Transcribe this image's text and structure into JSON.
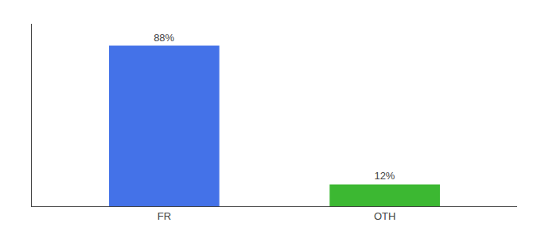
{
  "chart_data": {
    "type": "bar",
    "categories": [
      "FR",
      "OTH"
    ],
    "values": [
      88,
      12
    ],
    "value_labels": [
      "88%",
      "12%"
    ],
    "colors": [
      "#4472e8",
      "#3cb832"
    ],
    "ylim": [
      0,
      100
    ],
    "data_labels": true,
    "tick_labels": "x",
    "grid": false
  }
}
